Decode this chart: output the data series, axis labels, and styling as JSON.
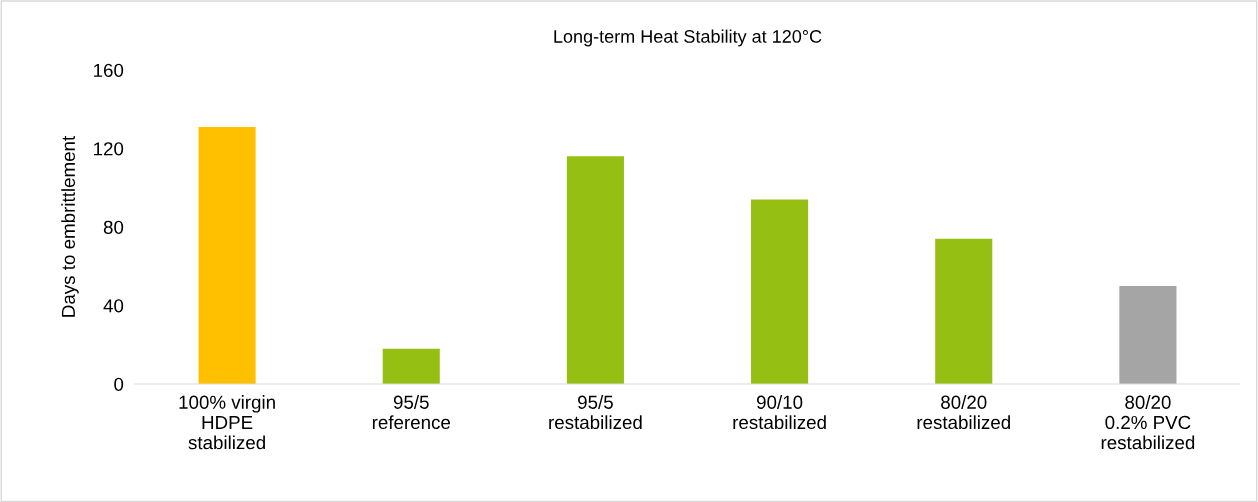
{
  "chart_data": {
    "type": "bar",
    "title": "Long-term Heat Stability at 120°C",
    "ylabel": "Days to embrittlement",
    "categories": [
      "100% virgin\nHDPE\nstabilized",
      "95/5\nreference",
      "95/5\nrestabilized",
      "90/10\nrestabilized",
      "80/20\nrestabilized",
      "80/20\n0.2% PVC\nrestabilized"
    ],
    "values": [
      131,
      18,
      116,
      94,
      74,
      50
    ],
    "colors": [
      "#ffc000",
      "#95bf12",
      "#95bf12",
      "#95bf12",
      "#95bf12",
      "#a5a5a5"
    ],
    "ylim": [
      0,
      160
    ],
    "yticks": [
      0,
      40,
      80,
      120,
      160
    ],
    "grid": false,
    "legend": false
  }
}
